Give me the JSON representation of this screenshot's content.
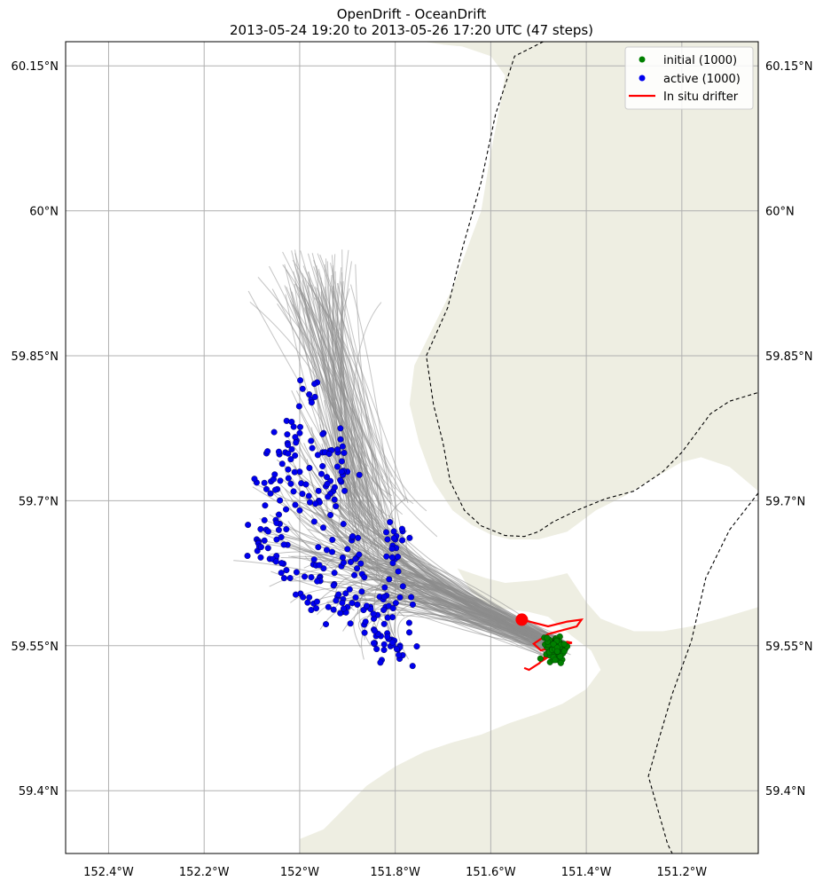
{
  "title": {
    "line1": "OpenDrift - OceanDrift",
    "line2": "2013-05-24 19:20 to 2013-05-26 17:20 UTC (47 steps)"
  },
  "colors": {
    "land": "#eeeee2",
    "grid": "#b0b0b0",
    "trajectories": "#8c8c8c",
    "initial": "#008000",
    "active": "#0000ee",
    "drifter": "#ff0000",
    "border": "#000000"
  },
  "legend": {
    "placement": "top-right",
    "items": [
      {
        "label": "initial (1000)",
        "marker": "dot",
        "color": "#008000"
      },
      {
        "label": "active (1000)",
        "marker": "dot",
        "color": "#0000ee"
      },
      {
        "label": "In situ drifter",
        "marker": "line",
        "color": "#ff0000"
      }
    ]
  },
  "chart_data": {
    "type": "scatter",
    "projection": "map",
    "xlabel": "",
    "ylabel": "",
    "xlim": [
      -152.49,
      -151.04
    ],
    "ylim": [
      59.335,
      60.175
    ],
    "grid": true,
    "x_ticks": [
      {
        "value": -152.4,
        "label": "152.4°W"
      },
      {
        "value": -152.2,
        "label": "152.2°W"
      },
      {
        "value": -152.0,
        "label": "152°W"
      },
      {
        "value": -151.8,
        "label": "151.8°W"
      },
      {
        "value": -151.6,
        "label": "151.6°W"
      },
      {
        "value": -151.4,
        "label": "151.4°W"
      },
      {
        "value": -151.2,
        "label": "151.2°W"
      }
    ],
    "y_ticks": [
      {
        "value": 59.4,
        "label": "59.4°N"
      },
      {
        "value": 59.55,
        "label": "59.55°N"
      },
      {
        "value": 59.7,
        "label": "59.7°N"
      },
      {
        "value": 59.85,
        "label": "59.85°N"
      },
      {
        "value": 60.0,
        "label": "60°N"
      },
      {
        "value": 60.15,
        "label": "60.15°N"
      }
    ],
    "series": [
      {
        "name": "initial (1000)",
        "count": 1000,
        "center_lon": -151.465,
        "center_lat": 59.548,
        "spread_lon": 0.022,
        "spread_lat": 0.012
      },
      {
        "name": "active (1000)",
        "count": 1000,
        "points": [
          [
            -152.06,
            59.72
          ],
          [
            -152.05,
            59.68
          ],
          [
            -152.03,
            59.75
          ],
          [
            -152.0,
            59.77
          ],
          [
            -151.98,
            59.81
          ],
          [
            -151.95,
            59.77
          ],
          [
            -151.92,
            59.75
          ],
          [
            -151.9,
            59.73
          ],
          [
            -152.07,
            59.67
          ],
          [
            -152.05,
            59.64
          ],
          [
            -152.02,
            59.62
          ],
          [
            -151.98,
            59.6
          ],
          [
            -151.94,
            59.59
          ],
          [
            -151.9,
            59.59
          ],
          [
            -151.86,
            59.59
          ],
          [
            -151.82,
            59.59
          ],
          [
            -151.79,
            59.6
          ],
          [
            -151.83,
            59.56
          ],
          [
            -151.79,
            59.55
          ],
          [
            -151.8,
            59.64
          ],
          [
            -151.8,
            59.66
          ],
          [
            -151.84,
            59.56
          ],
          [
            -152.09,
            59.66
          ],
          [
            -151.95,
            59.63
          ],
          [
            -151.9,
            59.65
          ],
          [
            -151.88,
            59.63
          ],
          [
            -152.0,
            59.69
          ],
          [
            -151.96,
            59.7
          ],
          [
            -152.0,
            59.73
          ],
          [
            -151.93,
            59.71
          ]
        ]
      },
      {
        "name": "In situ drifter",
        "start": {
          "lon": -151.535,
          "lat": 59.577
        },
        "track": [
          [
            -151.535,
            59.577
          ],
          [
            -151.48,
            59.57
          ],
          [
            -151.44,
            59.575
          ],
          [
            -151.41,
            59.577
          ],
          [
            -151.42,
            59.57
          ],
          [
            -151.48,
            59.562
          ],
          [
            -151.51,
            59.552
          ],
          [
            -151.495,
            59.545
          ],
          [
            -151.46,
            59.55
          ],
          [
            -151.43,
            59.553
          ],
          [
            -151.44,
            59.554
          ],
          [
            -151.48,
            59.548
          ],
          [
            -151.49,
            59.535
          ],
          [
            -151.475,
            59.54
          ],
          [
            -151.465,
            59.548
          ],
          [
            -151.482,
            59.542
          ],
          [
            -151.498,
            59.532
          ],
          [
            -151.52,
            59.525
          ],
          [
            -151.53,
            59.527
          ]
        ]
      }
    ],
    "trajectory_lines": 1000,
    "boundaries": {
      "land_polygons": [
        [
          [
            -151.74,
            60.175
          ],
          [
            -151.04,
            60.175
          ],
          [
            -151.04,
            59.71
          ],
          [
            -151.1,
            59.735
          ],
          [
            -151.16,
            59.745
          ],
          [
            -151.2,
            59.74
          ],
          [
            -151.27,
            59.72
          ],
          [
            -151.32,
            59.705
          ],
          [
            -151.38,
            59.69
          ],
          [
            -151.44,
            59.668
          ],
          [
            -151.5,
            59.66
          ],
          [
            -151.56,
            59.66
          ],
          [
            -151.6,
            59.665
          ],
          [
            -151.64,
            59.675
          ],
          [
            -151.68,
            59.69
          ],
          [
            -151.72,
            59.72
          ],
          [
            -151.75,
            59.76
          ],
          [
            -151.77,
            59.8
          ],
          [
            -151.76,
            59.84
          ],
          [
            -151.72,
            59.88
          ],
          [
            -151.68,
            59.92
          ],
          [
            -151.65,
            59.96
          ],
          [
            -151.62,
            60.0
          ],
          [
            -151.6,
            60.06
          ],
          [
            -151.58,
            60.11
          ],
          [
            -151.57,
            60.14
          ],
          [
            -151.6,
            60.16
          ],
          [
            -151.66,
            60.17
          ],
          [
            -151.7,
            60.172
          ]
        ],
        [
          [
            -151.67,
            59.63
          ],
          [
            -151.61,
            59.62
          ],
          [
            -151.57,
            59.615
          ],
          [
            -151.5,
            59.618
          ],
          [
            -151.44,
            59.625
          ],
          [
            -151.42,
            59.61
          ],
          [
            -151.4,
            59.595
          ],
          [
            -151.37,
            59.578
          ],
          [
            -151.34,
            59.572
          ],
          [
            -151.3,
            59.565
          ],
          [
            -151.24,
            59.565
          ],
          [
            -151.18,
            59.57
          ],
          [
            -151.12,
            59.578
          ],
          [
            -151.04,
            59.59
          ],
          [
            -151.04,
            59.335
          ],
          [
            -152.0,
            59.335
          ],
          [
            -152.0,
            59.35
          ],
          [
            -151.95,
            59.36
          ],
          [
            -151.91,
            59.38
          ],
          [
            -151.86,
            59.405
          ],
          [
            -151.8,
            59.425
          ],
          [
            -151.74,
            59.44
          ],
          [
            -151.68,
            59.45
          ],
          [
            -151.62,
            59.458
          ],
          [
            -151.56,
            59.47
          ],
          [
            -151.5,
            59.48
          ],
          [
            -151.45,
            59.49
          ],
          [
            -151.4,
            59.505
          ],
          [
            -151.37,
            59.525
          ],
          [
            -151.39,
            59.545
          ],
          [
            -151.43,
            59.56
          ],
          [
            -151.46,
            59.572
          ],
          [
            -151.48,
            59.58
          ],
          [
            -151.52,
            59.585
          ],
          [
            -151.6,
            59.59
          ],
          [
            -151.64,
            59.605
          ]
        ]
      ],
      "borders": [
        [
          [
            -151.49,
            60.175
          ],
          [
            -151.55,
            60.16
          ],
          [
            -151.59,
            60.1
          ],
          [
            -151.62,
            60.03
          ],
          [
            -151.66,
            59.96
          ],
          [
            -151.69,
            59.9
          ],
          [
            -151.735,
            59.85
          ],
          [
            -151.72,
            59.8
          ],
          [
            -151.7,
            59.76
          ],
          [
            -151.685,
            59.72
          ],
          [
            -151.655,
            59.69
          ],
          [
            -151.62,
            59.674
          ],
          [
            -151.57,
            59.664
          ],
          [
            -151.53,
            59.663
          ],
          [
            -151.5,
            59.668
          ],
          [
            -151.47,
            59.678
          ],
          [
            -151.42,
            59.69
          ],
          [
            -151.36,
            59.702
          ],
          [
            -151.3,
            59.71
          ],
          [
            -151.24,
            59.73
          ],
          [
            -151.2,
            59.75
          ],
          [
            -151.17,
            59.77
          ],
          [
            -151.14,
            59.79
          ],
          [
            -151.1,
            59.803
          ],
          [
            -151.04,
            59.812
          ]
        ],
        [
          [
            -151.04,
            59.708
          ],
          [
            -151.1,
            59.67
          ],
          [
            -151.15,
            59.62
          ],
          [
            -151.18,
            59.555
          ],
          [
            -151.22,
            59.5
          ],
          [
            -151.25,
            59.45
          ],
          [
            -151.27,
            59.415
          ],
          [
            -151.25,
            59.38
          ],
          [
            -151.23,
            59.345
          ],
          [
            -151.22,
            59.335
          ]
        ]
      ]
    }
  }
}
